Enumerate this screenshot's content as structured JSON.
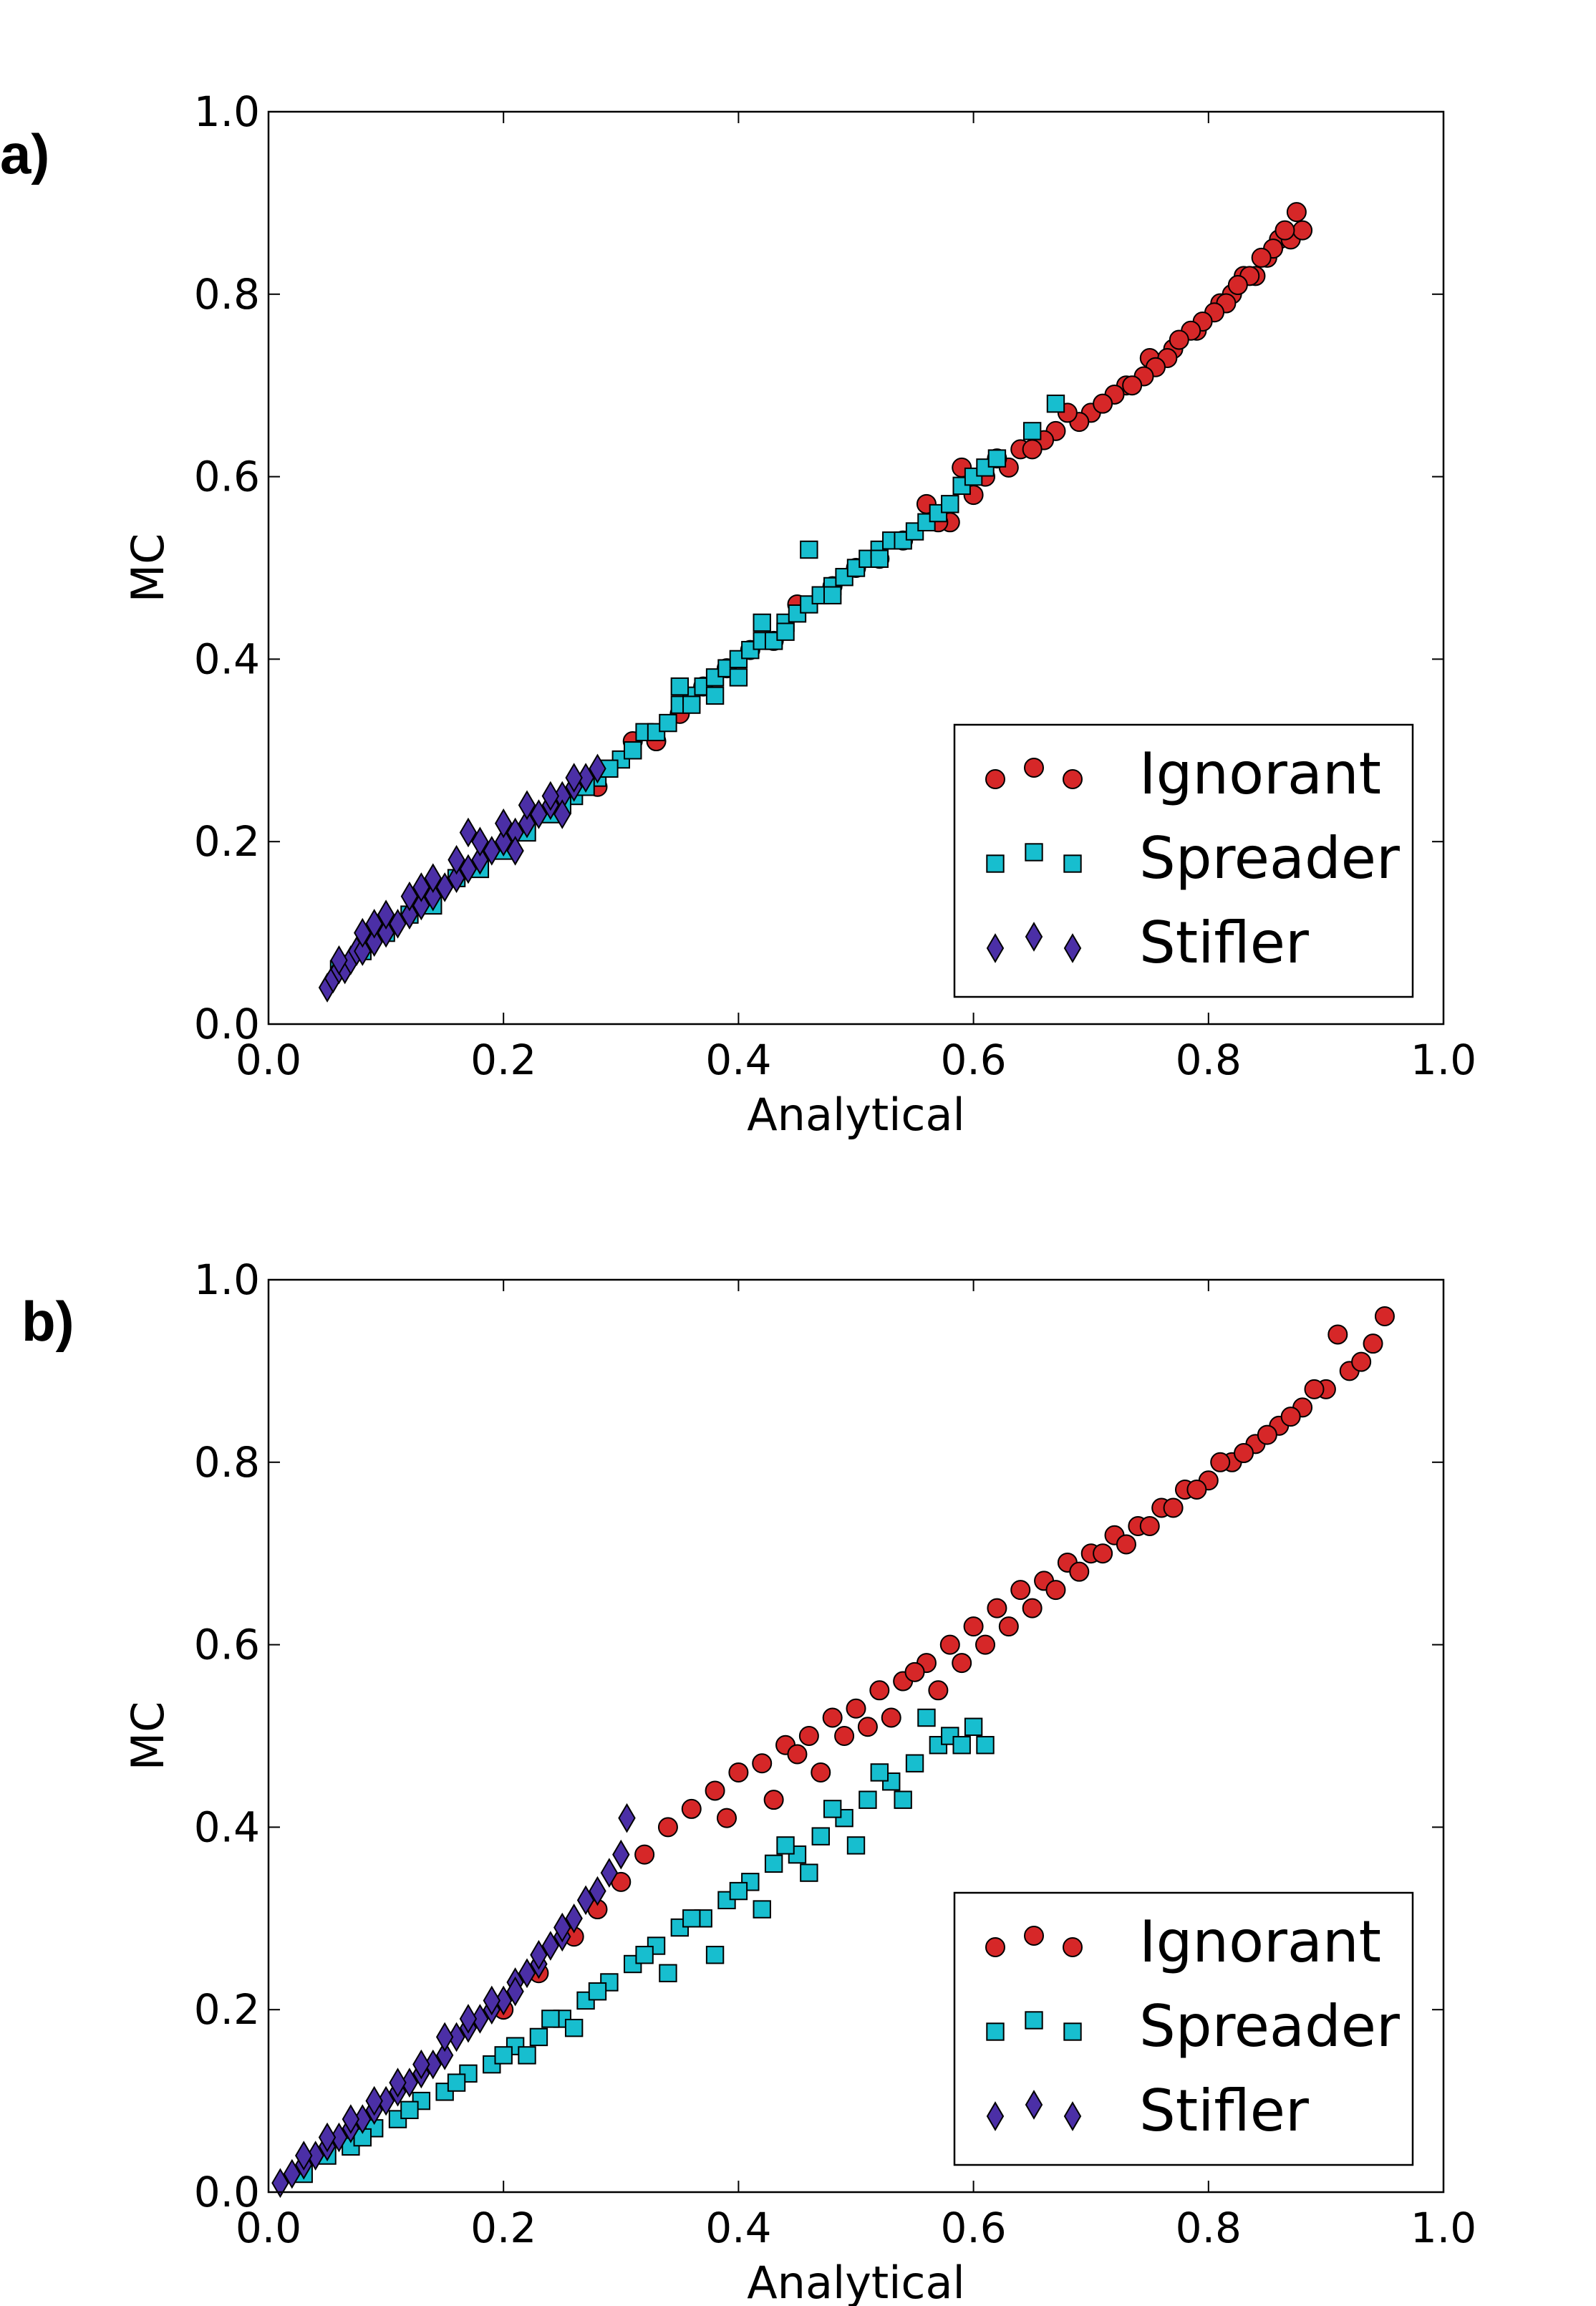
{
  "panels": [
    {
      "panel_label": "a)",
      "chart_data": {
        "type": "scatter",
        "xlabel": "Analytical",
        "ylabel": "MC",
        "xlim": [
          0,
          1
        ],
        "ylim": [
          0,
          1
        ],
        "xticks": [
          "0.0",
          "0.2",
          "0.4",
          "0.6",
          "0.8",
          "1.0"
        ],
        "yticks": [
          "0.0",
          "0.2",
          "0.4",
          "0.6",
          "0.8",
          "1.0"
        ],
        "legend_position": "lower-right",
        "series": [
          {
            "name": "Ignorant",
            "marker": "circle",
            "color": "#d62728",
            "x": [
              0.28,
              0.33,
              0.37,
              0.41,
              0.45,
              0.5,
              0.54,
              0.58,
              0.61,
              0.64,
              0.67,
              0.7,
              0.73,
              0.75,
              0.77,
              0.79,
              0.81,
              0.82,
              0.83,
              0.84,
              0.85,
              0.86,
              0.87,
              0.88,
              0.875,
              0.865,
              0.855,
              0.845,
              0.835,
              0.825,
              0.815,
              0.805,
              0.795,
              0.785,
              0.775,
              0.765,
              0.755,
              0.745,
              0.735,
              0.72,
              0.71,
              0.69,
              0.68,
              0.66,
              0.65,
              0.63,
              0.62,
              0.6,
              0.59,
              0.57,
              0.56,
              0.52,
              0.48,
              0.43,
              0.39,
              0.35,
              0.31
            ],
            "y": [
              0.26,
              0.31,
              0.37,
              0.41,
              0.46,
              0.5,
              0.53,
              0.55,
              0.6,
              0.63,
              0.65,
              0.67,
              0.7,
              0.73,
              0.74,
              0.76,
              0.79,
              0.8,
              0.82,
              0.82,
              0.84,
              0.86,
              0.86,
              0.87,
              0.89,
              0.87,
              0.85,
              0.84,
              0.82,
              0.81,
              0.79,
              0.78,
              0.77,
              0.76,
              0.75,
              0.73,
              0.72,
              0.71,
              0.7,
              0.69,
              0.68,
              0.66,
              0.67,
              0.64,
              0.63,
              0.61,
              0.62,
              0.58,
              0.61,
              0.55,
              0.57,
              0.51,
              0.48,
              0.42,
              0.39,
              0.34,
              0.31
            ]
          },
          {
            "name": "Spreader",
            "marker": "square",
            "color": "#17becf",
            "x": [
              0.06,
              0.08,
              0.1,
              0.12,
              0.14,
              0.16,
              0.18,
              0.2,
              0.22,
              0.24,
              0.26,
              0.28,
              0.3,
              0.31,
              0.32,
              0.33,
              0.34,
              0.35,
              0.36,
              0.37,
              0.38,
              0.39,
              0.4,
              0.41,
              0.42,
              0.43,
              0.44,
              0.45,
              0.46,
              0.47,
              0.48,
              0.49,
              0.5,
              0.51,
              0.52,
              0.53,
              0.54,
              0.55,
              0.56,
              0.57,
              0.58,
              0.59,
              0.6,
              0.61,
              0.62,
              0.65,
              0.67,
              0.35,
              0.38,
              0.42,
              0.46,
              0.29,
              0.27,
              0.25,
              0.31,
              0.36,
              0.4,
              0.44,
              0.48,
              0.52
            ],
            "y": [
              0.06,
              0.08,
              0.1,
              0.12,
              0.13,
              0.16,
              0.17,
              0.19,
              0.21,
              0.23,
              0.25,
              0.27,
              0.29,
              0.3,
              0.32,
              0.32,
              0.33,
              0.35,
              0.36,
              0.37,
              0.38,
              0.39,
              0.4,
              0.41,
              0.42,
              0.42,
              0.44,
              0.45,
              0.46,
              0.47,
              0.48,
              0.49,
              0.5,
              0.51,
              0.52,
              0.53,
              0.53,
              0.54,
              0.55,
              0.56,
              0.57,
              0.59,
              0.6,
              0.61,
              0.62,
              0.65,
              0.68,
              0.37,
              0.36,
              0.44,
              0.52,
              0.28,
              0.26,
              0.24,
              0.3,
              0.35,
              0.38,
              0.43,
              0.47,
              0.51
            ]
          },
          {
            "name": "Stifler",
            "marker": "diamond",
            "color": "#4b2fa6",
            "x": [
              0.05,
              0.055,
              0.06,
              0.065,
              0.07,
              0.075,
              0.08,
              0.09,
              0.1,
              0.11,
              0.12,
              0.13,
              0.14,
              0.15,
              0.16,
              0.17,
              0.18,
              0.19,
              0.2,
              0.21,
              0.22,
              0.23,
              0.24,
              0.25,
              0.26,
              0.27,
              0.28,
              0.06,
              0.08,
              0.1,
              0.12,
              0.14,
              0.16,
              0.18,
              0.2,
              0.22,
              0.24,
              0.26,
              0.09,
              0.13,
              0.17,
              0.21,
              0.25
            ],
            "y": [
              0.04,
              0.05,
              0.06,
              0.06,
              0.07,
              0.08,
              0.08,
              0.09,
              0.1,
              0.11,
              0.12,
              0.13,
              0.14,
              0.15,
              0.16,
              0.17,
              0.18,
              0.19,
              0.2,
              0.21,
              0.22,
              0.23,
              0.24,
              0.25,
              0.26,
              0.27,
              0.28,
              0.07,
              0.1,
              0.12,
              0.14,
              0.16,
              0.18,
              0.2,
              0.22,
              0.24,
              0.25,
              0.27,
              0.11,
              0.15,
              0.21,
              0.19,
              0.23
            ]
          }
        ]
      }
    },
    {
      "panel_label": "b)",
      "chart_data": {
        "type": "scatter",
        "xlabel": "Analytical",
        "ylabel": "MC",
        "xlim": [
          0,
          1
        ],
        "ylim": [
          0,
          1
        ],
        "xticks": [
          "0.0",
          "0.2",
          "0.4",
          "0.6",
          "0.8",
          "1.0"
        ],
        "yticks": [
          "0.0",
          "0.2",
          "0.4",
          "0.6",
          "0.8",
          "1.0"
        ],
        "legend_position": "lower-right",
        "series": [
          {
            "name": "Ignorant",
            "marker": "circle",
            "color": "#d62728",
            "x": [
              0.2,
              0.23,
              0.26,
              0.28,
              0.3,
              0.32,
              0.34,
              0.36,
              0.38,
              0.4,
              0.42,
              0.44,
              0.46,
              0.48,
              0.5,
              0.52,
              0.54,
              0.56,
              0.58,
              0.6,
              0.62,
              0.64,
              0.66,
              0.68,
              0.7,
              0.72,
              0.74,
              0.76,
              0.78,
              0.8,
              0.82,
              0.84,
              0.86,
              0.88,
              0.9,
              0.92,
              0.93,
              0.94,
              0.95,
              0.45,
              0.49,
              0.53,
              0.57,
              0.61,
              0.65,
              0.69,
              0.73,
              0.77,
              0.81,
              0.85,
              0.89,
              0.91,
              0.87,
              0.83,
              0.79,
              0.75,
              0.71,
              0.67,
              0.63,
              0.59,
              0.55,
              0.51,
              0.47,
              0.43,
              0.39
            ],
            "y": [
              0.2,
              0.24,
              0.28,
              0.31,
              0.34,
              0.37,
              0.4,
              0.42,
              0.44,
              0.46,
              0.47,
              0.49,
              0.5,
              0.52,
              0.53,
              0.55,
              0.56,
              0.58,
              0.6,
              0.62,
              0.64,
              0.66,
              0.67,
              0.69,
              0.7,
              0.72,
              0.73,
              0.75,
              0.77,
              0.78,
              0.8,
              0.82,
              0.84,
              0.86,
              0.88,
              0.9,
              0.91,
              0.93,
              0.96,
              0.48,
              0.5,
              0.52,
              0.55,
              0.6,
              0.64,
              0.68,
              0.71,
              0.75,
              0.8,
              0.83,
              0.88,
              0.94,
              0.85,
              0.81,
              0.77,
              0.73,
              0.7,
              0.66,
              0.62,
              0.58,
              0.57,
              0.51,
              0.46,
              0.43,
              0.41
            ]
          },
          {
            "name": "Spreader",
            "marker": "square",
            "color": "#17becf",
            "x": [
              0.03,
              0.05,
              0.07,
              0.09,
              0.11,
              0.13,
              0.15,
              0.17,
              0.19,
              0.21,
              0.23,
              0.25,
              0.27,
              0.29,
              0.31,
              0.33,
              0.35,
              0.37,
              0.39,
              0.41,
              0.43,
              0.45,
              0.47,
              0.49,
              0.51,
              0.53,
              0.55,
              0.57,
              0.58,
              0.59,
              0.6,
              0.61,
              0.56,
              0.52,
              0.48,
              0.44,
              0.4,
              0.36,
              0.32,
              0.28,
              0.24,
              0.2,
              0.16,
              0.12,
              0.08,
              0.34,
              0.38,
              0.42,
              0.46,
              0.5,
              0.54,
              0.26,
              0.22
            ],
            "y": [
              0.02,
              0.04,
              0.05,
              0.07,
              0.08,
              0.1,
              0.11,
              0.13,
              0.14,
              0.16,
              0.17,
              0.19,
              0.21,
              0.23,
              0.25,
              0.27,
              0.29,
              0.3,
              0.32,
              0.34,
              0.36,
              0.37,
              0.39,
              0.41,
              0.43,
              0.45,
              0.47,
              0.49,
              0.5,
              0.49,
              0.51,
              0.49,
              0.52,
              0.46,
              0.42,
              0.38,
              0.33,
              0.3,
              0.26,
              0.22,
              0.19,
              0.15,
              0.12,
              0.09,
              0.06,
              0.24,
              0.26,
              0.31,
              0.35,
              0.38,
              0.43,
              0.18,
              0.15
            ]
          },
          {
            "name": "Stifler",
            "marker": "diamond",
            "color": "#4b2fa6",
            "x": [
              0.01,
              0.02,
              0.03,
              0.04,
              0.05,
              0.06,
              0.07,
              0.08,
              0.09,
              0.1,
              0.11,
              0.12,
              0.13,
              0.14,
              0.15,
              0.16,
              0.17,
              0.18,
              0.19,
              0.2,
              0.21,
              0.22,
              0.23,
              0.24,
              0.25,
              0.26,
              0.27,
              0.28,
              0.29,
              0.3,
              0.305,
              0.03,
              0.05,
              0.07,
              0.09,
              0.11,
              0.13,
              0.15,
              0.17,
              0.19,
              0.21,
              0.23,
              0.25
            ],
            "y": [
              0.01,
              0.02,
              0.03,
              0.04,
              0.05,
              0.06,
              0.07,
              0.08,
              0.09,
              0.1,
              0.11,
              0.12,
              0.13,
              0.14,
              0.15,
              0.17,
              0.18,
              0.19,
              0.2,
              0.21,
              0.23,
              0.24,
              0.25,
              0.27,
              0.28,
              0.3,
              0.32,
              0.33,
              0.35,
              0.37,
              0.41,
              0.04,
              0.06,
              0.08,
              0.1,
              0.12,
              0.14,
              0.17,
              0.19,
              0.21,
              0.22,
              0.26,
              0.29
            ]
          }
        ]
      }
    }
  ]
}
